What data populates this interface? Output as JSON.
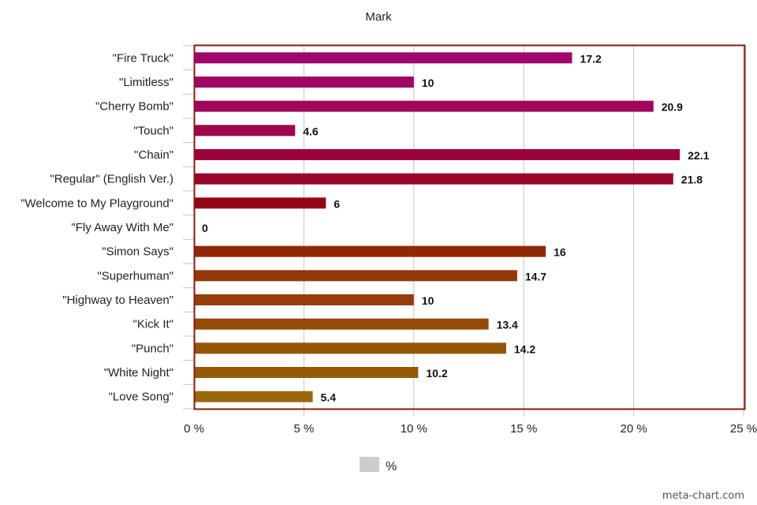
{
  "chart_data": {
    "type": "bar",
    "orientation": "horizontal",
    "title": "Mark",
    "categories": [
      "\"Fire Truck\"",
      "\"Limitless\"",
      "\"Cherry Bomb\"",
      "\"Touch\"",
      "\"Chain\"",
      "\"Regular\" (English Ver.)",
      "\"Welcome to My Playground\"",
      "\"Fly Away With Me\"",
      "\"Simon Says\"",
      "\"Superhuman\"",
      "\"Highway to Heaven\"",
      "\"Kick It\"",
      "\"Punch\"",
      "\"White Night\"",
      "\"Love Song\""
    ],
    "series": [
      {
        "name": "%",
        "values": [
          17.2,
          10,
          20.9,
          4.6,
          22.1,
          21.8,
          6,
          0,
          16,
          14.7,
          10,
          13.4,
          14.2,
          10.2,
          5.4
        ],
        "labels": [
          "17.2",
          "10",
          "20.9",
          "4.6",
          "22.1",
          "21.8",
          "6",
          "0",
          "16",
          "14.7",
          "10",
          "13.4",
          "14.2",
          "10.2",
          "5.4"
        ]
      }
    ],
    "bar_colors": [
      "#a0066c",
      "#a00664",
      "#a0065a",
      "#9f064c",
      "#9b053a",
      "#98062a",
      "#950512",
      "#930808",
      "#912808",
      "#933808",
      "#963e05",
      "#944b06",
      "#955506",
      "#965a07",
      "#98680a"
    ],
    "xlim": [
      0,
      25
    ],
    "xticks": [
      0,
      5,
      10,
      15,
      20,
      25
    ],
    "xtick_labels": [
      "0 %",
      "5 %",
      "10 %",
      "15 %",
      "20 %",
      "25 %"
    ],
    "grid": true,
    "legend": {
      "position": "bottom",
      "label": "%",
      "swatch_color": "#cccccc"
    },
    "plot_border_color": "#8a1a0a"
  },
  "watermark": "meta-chart.com"
}
